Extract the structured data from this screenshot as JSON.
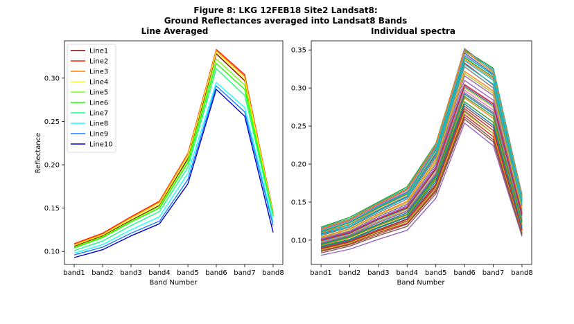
{
  "figure": {
    "title_line1": "Figure 8: LKG 12FEB18 Site2 Landsat8:",
    "title_line2": "Ground Reflectances averaged into Landsat8 Bands"
  },
  "chart_data": [
    {
      "type": "line",
      "title": "Line Averaged",
      "xlabel": "Band Number",
      "ylabel": "Reflectance",
      "categories": [
        "band1",
        "band2",
        "band3",
        "band4",
        "band5",
        "band6",
        "band7",
        "band8"
      ],
      "ylim": [
        0.085,
        0.343
      ],
      "yticks": [
        0.1,
        0.15,
        0.2,
        0.25,
        0.3
      ],
      "grid": false,
      "legend": "top-left",
      "series": [
        {
          "name": "Line1",
          "color": "#800000",
          "values": [
            0.106,
            0.118,
            0.136,
            0.153,
            0.207,
            0.328,
            0.297,
            0.141
          ]
        },
        {
          "name": "Line2",
          "color": "#ff1a00",
          "values": [
            0.109,
            0.121,
            0.14,
            0.158,
            0.213,
            0.333,
            0.304,
            0.145
          ]
        },
        {
          "name": "Line3",
          "color": "#ff8000",
          "values": [
            0.108,
            0.12,
            0.139,
            0.157,
            0.212,
            0.332,
            0.302,
            0.144
          ]
        },
        {
          "name": "Line4",
          "color": "#ffff1a",
          "values": [
            0.107,
            0.119,
            0.138,
            0.155,
            0.21,
            0.33,
            0.299,
            0.143
          ]
        },
        {
          "name": "Line5",
          "color": "#80ff1a",
          "values": [
            0.105,
            0.117,
            0.135,
            0.152,
            0.205,
            0.322,
            0.292,
            0.142
          ]
        },
        {
          "name": "Line6",
          "color": "#1aff00",
          "values": [
            0.104,
            0.116,
            0.134,
            0.15,
            0.202,
            0.317,
            0.287,
            0.141
          ]
        },
        {
          "name": "Line7",
          "color": "#1aff80",
          "values": [
            0.101,
            0.112,
            0.13,
            0.146,
            0.197,
            0.311,
            0.28,
            0.14
          ]
        },
        {
          "name": "Line8",
          "color": "#1affff",
          "values": [
            0.098,
            0.108,
            0.125,
            0.14,
            0.19,
            0.295,
            0.266,
            0.134
          ]
        },
        {
          "name": "Line9",
          "color": "#1a80ff",
          "values": [
            0.096,
            0.105,
            0.121,
            0.135,
            0.183,
            0.291,
            0.261,
            0.13
          ]
        },
        {
          "name": "Line10",
          "color": "#0000cc",
          "values": [
            0.093,
            0.102,
            0.118,
            0.132,
            0.178,
            0.287,
            0.256,
            0.122
          ]
        }
      ]
    },
    {
      "type": "line",
      "title": "Individual spectra",
      "xlabel": "Band Number",
      "ylabel": "",
      "categories": [
        "band1",
        "band2",
        "band3",
        "band4",
        "band5",
        "band6",
        "band7",
        "band8"
      ],
      "ylim": [
        0.068,
        0.362
      ],
      "yticks": [
        0.1,
        0.15,
        0.2,
        0.25,
        0.3,
        0.35
      ],
      "grid": false,
      "series": [
        {
          "color": "#1f77b4",
          "values": [
            0.112,
            0.124,
            0.145,
            0.163,
            0.222,
            0.346,
            0.318,
            0.155
          ]
        },
        {
          "color": "#ff7f0e",
          "values": [
            0.11,
            0.121,
            0.142,
            0.16,
            0.218,
            0.338,
            0.312,
            0.15
          ]
        },
        {
          "color": "#2ca02c",
          "values": [
            0.117,
            0.13,
            0.15,
            0.17,
            0.227,
            0.35,
            0.326,
            0.158
          ]
        },
        {
          "color": "#d62728",
          "values": [
            0.108,
            0.118,
            0.139,
            0.157,
            0.213,
            0.333,
            0.304,
            0.145
          ]
        },
        {
          "color": "#9467bd",
          "values": [
            0.08,
            0.088,
            0.101,
            0.113,
            0.155,
            0.254,
            0.224,
            0.105
          ]
        },
        {
          "color": "#8c564b",
          "values": [
            0.088,
            0.097,
            0.112,
            0.125,
            0.17,
            0.27,
            0.24,
            0.112
          ]
        },
        {
          "color": "#e377c2",
          "values": [
            0.1,
            0.11,
            0.128,
            0.144,
            0.195,
            0.305,
            0.28,
            0.135
          ]
        },
        {
          "color": "#7f7f7f",
          "values": [
            0.114,
            0.126,
            0.147,
            0.166,
            0.224,
            0.352,
            0.322,
            0.16
          ]
        },
        {
          "color": "#bcbd22",
          "values": [
            0.098,
            0.108,
            0.125,
            0.141,
            0.192,
            0.3,
            0.275,
            0.13
          ]
        },
        {
          "color": "#17becf",
          "values": [
            0.116,
            0.128,
            0.149,
            0.168,
            0.226,
            0.348,
            0.324,
            0.157
          ]
        },
        {
          "color": "#1f77b4",
          "values": [
            0.095,
            0.105,
            0.121,
            0.136,
            0.185,
            0.292,
            0.266,
            0.125
          ]
        },
        {
          "color": "#ff7f0e",
          "values": [
            0.104,
            0.115,
            0.134,
            0.151,
            0.206,
            0.322,
            0.296,
            0.142
          ]
        },
        {
          "color": "#2ca02c",
          "values": [
            0.092,
            0.101,
            0.117,
            0.131,
            0.18,
            0.282,
            0.255,
            0.118
          ]
        },
        {
          "color": "#d62728",
          "values": [
            0.086,
            0.095,
            0.11,
            0.122,
            0.166,
            0.265,
            0.236,
            0.11
          ]
        },
        {
          "color": "#9467bd",
          "values": [
            0.102,
            0.112,
            0.131,
            0.147,
            0.2,
            0.316,
            0.29,
            0.14
          ]
        },
        {
          "color": "#8c564b",
          "values": [
            0.09,
            0.099,
            0.114,
            0.128,
            0.174,
            0.276,
            0.248,
            0.114
          ]
        },
        {
          "color": "#e377c2",
          "values": [
            0.097,
            0.107,
            0.124,
            0.139,
            0.189,
            0.297,
            0.271,
            0.128
          ]
        },
        {
          "color": "#7f7f7f",
          "values": [
            0.106,
            0.117,
            0.136,
            0.154,
            0.209,
            0.328,
            0.3,
            0.146
          ]
        },
        {
          "color": "#bcbd22",
          "values": [
            0.087,
            0.096,
            0.111,
            0.124,
            0.168,
            0.268,
            0.24,
            0.111
          ]
        },
        {
          "color": "#17becf",
          "values": [
            0.109,
            0.12,
            0.14,
            0.158,
            0.215,
            0.336,
            0.31,
            0.15
          ]
        },
        {
          "color": "#1f77b4",
          "values": [
            0.099,
            0.109,
            0.127,
            0.142,
            0.193,
            0.302,
            0.277,
            0.132
          ]
        },
        {
          "color": "#ff7f0e",
          "values": [
            0.093,
            0.103,
            0.119,
            0.133,
            0.182,
            0.287,
            0.26,
            0.121
          ]
        },
        {
          "color": "#2ca02c",
          "values": [
            0.111,
            0.123,
            0.143,
            0.161,
            0.219,
            0.34,
            0.314,
            0.152
          ]
        },
        {
          "color": "#d62728",
          "values": [
            0.089,
            0.098,
            0.113,
            0.127,
            0.172,
            0.273,
            0.244,
            0.113
          ]
        },
        {
          "color": "#9467bd",
          "values": [
            0.101,
            0.111,
            0.129,
            0.145,
            0.197,
            0.31,
            0.284,
            0.137
          ]
        },
        {
          "color": "#8c564b",
          "values": [
            0.085,
            0.094,
            0.108,
            0.121,
            0.164,
            0.262,
            0.232,
            0.108
          ]
        },
        {
          "color": "#e377c2",
          "values": [
            0.113,
            0.125,
            0.146,
            0.164,
            0.221,
            0.344,
            0.316,
            0.154
          ]
        },
        {
          "color": "#7f7f7f",
          "values": [
            0.096,
            0.106,
            0.123,
            0.138,
            0.187,
            0.294,
            0.268,
            0.126
          ]
        },
        {
          "color": "#bcbd22",
          "values": [
            0.103,
            0.114,
            0.133,
            0.149,
            0.203,
            0.319,
            0.293,
            0.141
          ]
        },
        {
          "color": "#17becf",
          "values": [
            0.107,
            0.118,
            0.138,
            0.156,
            0.211,
            0.331,
            0.305,
            0.148
          ]
        },
        {
          "color": "#1f77b4",
          "values": [
            0.091,
            0.1,
            0.116,
            0.13,
            0.177,
            0.279,
            0.251,
            0.116
          ]
        },
        {
          "color": "#ff7f0e",
          "values": [
            0.115,
            0.127,
            0.148,
            0.167,
            0.225,
            0.349,
            0.32,
            0.156
          ]
        },
        {
          "color": "#2ca02c",
          "values": [
            0.094,
            0.104,
            0.12,
            0.134,
            0.183,
            0.289,
            0.263,
            0.123
          ]
        },
        {
          "color": "#d62728",
          "values": [
            0.1,
            0.11,
            0.128,
            0.143,
            0.194,
            0.304,
            0.279,
            0.134
          ]
        },
        {
          "color": "#17becf",
          "values": [
            0.112,
            0.124,
            0.144,
            0.162,
            0.22,
            0.342,
            0.317,
            0.153
          ]
        },
        {
          "color": "#8c564b",
          "values": [
            0.083,
            0.092,
            0.106,
            0.118,
            0.161,
            0.259,
            0.229,
            0.107
          ]
        }
      ]
    }
  ]
}
